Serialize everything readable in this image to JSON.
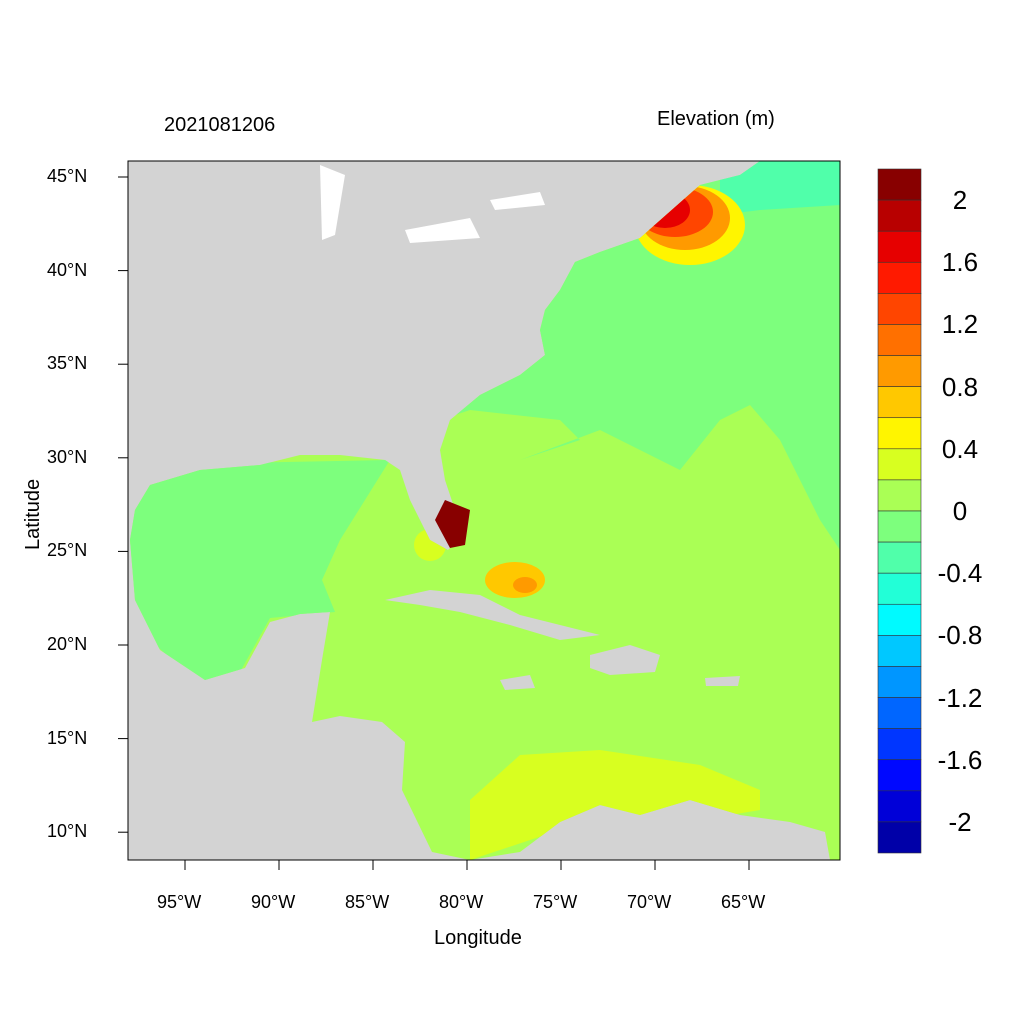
{
  "title_left": "2021081206",
  "title_right": "Elevation (m)",
  "xlabel": "Longitude",
  "ylabel": "Latitude",
  "lon_ticks": [
    "95°W",
    "90°W",
    "85°W",
    "80°W",
    "75°W",
    "70°W",
    "65°W"
  ],
  "lat_ticks": [
    "45°N",
    "40°N",
    "35°N",
    "30°N",
    "25°N",
    "20°N",
    "15°N",
    "10°N"
  ],
  "colorbar": {
    "labels": [
      "2",
      "1.6",
      "1.2",
      "0.8",
      "0.4",
      "0",
      "-0.4",
      "-0.8",
      "-1.2",
      "-1.6",
      "-2"
    ],
    "colors": [
      "#880000",
      "#B80000",
      "#E60000",
      "#FF1A00",
      "#FF4500",
      "#FF7000",
      "#FF9A00",
      "#FFC800",
      "#FFF500",
      "#D8FF20",
      "#AAFF55",
      "#7DFF7D",
      "#50FFAA",
      "#22FFD7",
      "#00FAFF",
      "#00C8FF",
      "#0096FF",
      "#0066FF",
      "#0036FF",
      "#0008FF",
      "#0000D8",
      "#0000A8"
    ]
  },
  "land_color": "#D3D3D3"
}
